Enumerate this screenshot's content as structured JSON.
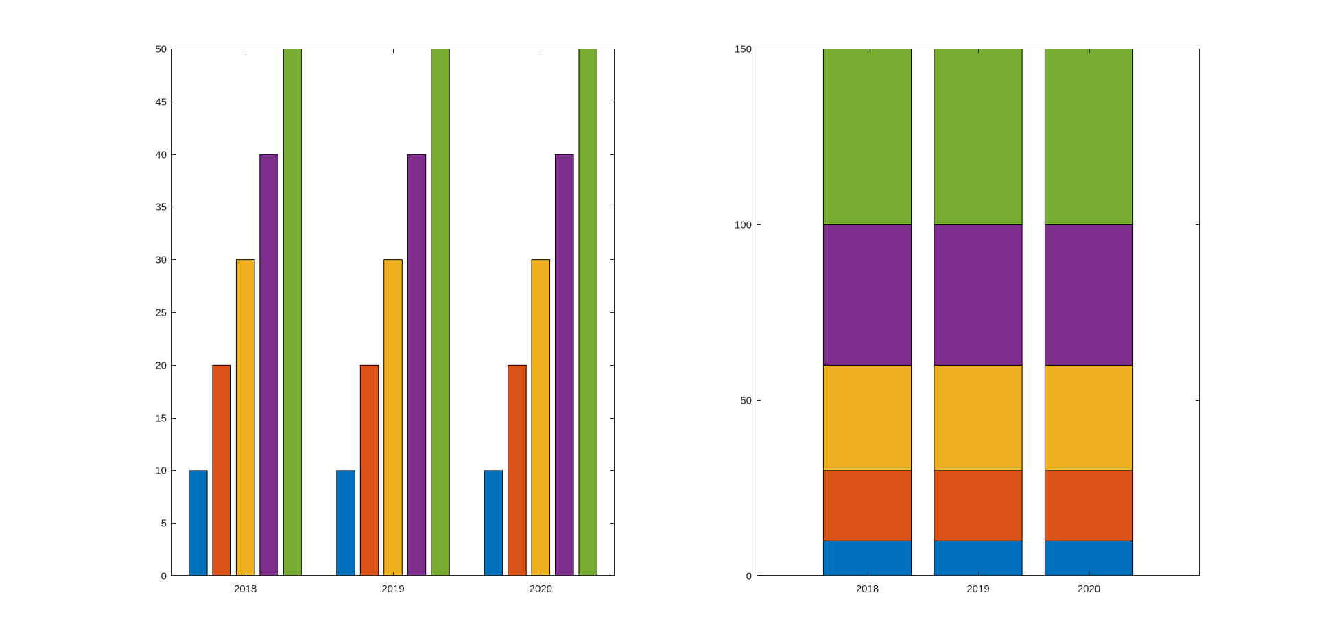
{
  "colors": {
    "background": "#ffffff",
    "axis": "#262626",
    "series": [
      "#0072BD",
      "#D95319",
      "#EDB120",
      "#7E2F8E",
      "#77AC30"
    ]
  },
  "chart_data": [
    {
      "type": "bar",
      "mode": "grouped",
      "categories": [
        "2018",
        "2019",
        "2020"
      ],
      "series": [
        {
          "values": [
            10,
            10,
            10
          ]
        },
        {
          "values": [
            20,
            20,
            20
          ]
        },
        {
          "values": [
            30,
            30,
            30
          ]
        },
        {
          "values": [
            40,
            40,
            40
          ]
        },
        {
          "values": [
            50,
            50,
            50
          ]
        }
      ],
      "ylim": [
        0,
        50
      ],
      "yticks": [
        0,
        5,
        10,
        15,
        20,
        25,
        30,
        35,
        40,
        45,
        50
      ],
      "xlabel": "",
      "ylabel": "",
      "title": "",
      "grid": false
    },
    {
      "type": "bar",
      "mode": "stacked",
      "categories": [
        "2018",
        "2019",
        "2020"
      ],
      "series": [
        {
          "values": [
            10,
            10,
            10
          ]
        },
        {
          "values": [
            20,
            20,
            20
          ]
        },
        {
          "values": [
            30,
            30,
            30
          ]
        },
        {
          "values": [
            40,
            40,
            40
          ]
        },
        {
          "values": [
            50,
            50,
            50
          ]
        }
      ],
      "ylim": [
        0,
        150
      ],
      "yticks": [
        0,
        50,
        100,
        150
      ],
      "xlabel": "",
      "ylabel": "",
      "title": "",
      "grid": false
    }
  ]
}
